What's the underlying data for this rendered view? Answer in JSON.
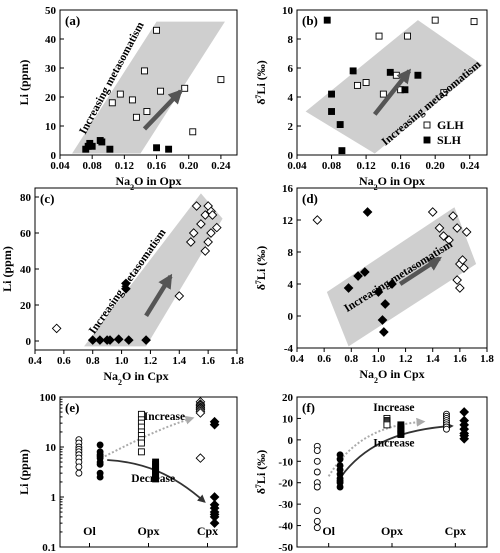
{
  "chart_data": [
    {
      "id": "a",
      "type": "scatter",
      "panel_label": "(a)",
      "xlabel": "Na2O in Opx",
      "ylabel": "Li (ppm)",
      "xlim": [
        0.04,
        0.26
      ],
      "ylim": [
        0,
        50
      ],
      "xticks": [
        "0.04",
        "0.08",
        "0.12",
        "0.16",
        "0.20",
        "0.24"
      ],
      "xtick_values": [
        0.04,
        0.08,
        0.12,
        0.16,
        0.2,
        0.24
      ],
      "yticks": [
        "0",
        "10",
        "20",
        "30",
        "40",
        "50"
      ],
      "ytick_values": [
        0,
        10,
        20,
        30,
        40,
        50
      ],
      "band": [
        [
          0.055,
          0.5
        ],
        [
          0.14,
          0.5
        ],
        [
          0.245,
          46
        ],
        [
          0.16,
          46
        ]
      ],
      "arrow": {
        "from": [
          0.145,
          9
        ],
        "to": [
          0.19,
          22
        ]
      },
      "annotations": [
        {
          "text": "Increasing metasomatism",
          "x": 0.108,
          "y": 26,
          "angle": -62
        }
      ],
      "series": [
        {
          "name": "GLH",
          "marker": "open-square",
          "points": [
            [
              0.105,
              18
            ],
            [
              0.115,
              21
            ],
            [
              0.13,
              19
            ],
            [
              0.135,
              13
            ],
            [
              0.145,
              29
            ],
            [
              0.148,
              15
            ],
            [
              0.16,
              43
            ],
            [
              0.165,
              22
            ],
            [
              0.195,
              23
            ],
            [
              0.205,
              8
            ],
            [
              0.24,
              26
            ]
          ]
        },
        {
          "name": "SLH",
          "marker": "filled-square",
          "points": [
            [
              0.072,
              2
            ],
            [
              0.075,
              3
            ],
            [
              0.077,
              4
            ],
            [
              0.08,
              3
            ],
            [
              0.09,
              5
            ],
            [
              0.092,
              4.5
            ],
            [
              0.102,
              2
            ],
            [
              0.16,
              2.5
            ],
            [
              0.175,
              2
            ]
          ]
        }
      ]
    },
    {
      "id": "b",
      "type": "scatter",
      "panel_label": "(b)",
      "xlabel": "Na2O in Opx",
      "ylabel": "δ7Li (‰)",
      "xlim": [
        0.04,
        0.26
      ],
      "ylim": [
        0,
        10
      ],
      "xticks": [
        "0.04",
        "0.08",
        "0.12",
        "0.16",
        "0.20",
        "0.24"
      ],
      "xtick_values": [
        0.04,
        0.08,
        0.12,
        0.16,
        0.2,
        0.24
      ],
      "yticks": [
        "0",
        "2",
        "4",
        "6",
        "8",
        "10"
      ],
      "ytick_values": [
        0,
        2,
        4,
        6,
        8,
        10
      ],
      "band": [
        [
          0.05,
          3
        ],
        [
          0.18,
          9.3
        ],
        [
          0.255,
          6.2
        ],
        [
          0.13,
          0.1
        ]
      ],
      "arrow": {
        "from": [
          0.13,
          2.8
        ],
        "to": [
          0.17,
          5.8
        ]
      },
      "annotations": [
        {
          "text": "Increasing metasomatism",
          "x": 0.198,
          "y": 3.4,
          "angle": -40
        }
      ],
      "legend": {
        "position": "bottom-right"
      },
      "series": [
        {
          "name": "GLH",
          "marker": "open-square",
          "points": [
            [
              0.11,
              4.8
            ],
            [
              0.12,
              5
            ],
            [
              0.135,
              8.2
            ],
            [
              0.14,
              4.2
            ],
            [
              0.155,
              5.5
            ],
            [
              0.16,
              4.5
            ],
            [
              0.168,
              8.2
            ],
            [
              0.2,
              9.3
            ],
            [
              0.21,
              4.3
            ],
            [
              0.245,
              9.2
            ]
          ]
        },
        {
          "name": "SLH",
          "marker": "filled-square",
          "points": [
            [
              0.075,
              9.3
            ],
            [
              0.08,
              4.2
            ],
            [
              0.08,
              3
            ],
            [
              0.09,
              2.1
            ],
            [
              0.092,
              0.3
            ],
            [
              0.105,
              5.8
            ],
            [
              0.148,
              5.7
            ],
            [
              0.165,
              4.5
            ],
            [
              0.18,
              5.5
            ]
          ]
        }
      ]
    },
    {
      "id": "c",
      "type": "scatter",
      "panel_label": "(c)",
      "xlabel": "Na2O in Cpx",
      "ylabel": "Li (ppm)",
      "xlim": [
        0.4,
        1.8
      ],
      "ylim": [
        -5,
        85
      ],
      "xticks": [
        "0.4",
        "0.6",
        "0.8",
        "1.0",
        "1.2",
        "1.4",
        "1.6",
        "1.8"
      ],
      "xtick_values": [
        0.4,
        0.6,
        0.8,
        1.0,
        1.2,
        1.4,
        1.6,
        1.8
      ],
      "yticks": [
        "0",
        "20",
        "40",
        "60",
        "80"
      ],
      "ytick_values": [
        0,
        20,
        40,
        60,
        80
      ],
      "band": [
        [
          0.74,
          -3
        ],
        [
          1.17,
          -3
        ],
        [
          1.7,
          68
        ],
        [
          1.55,
          82
        ]
      ],
      "arrow": {
        "from": [
          1.17,
          14
        ],
        "to": [
          1.34,
          36
        ]
      },
      "annotations": [
        {
          "text": "Increasing metasomatism",
          "x": 1.06,
          "y": 32,
          "angle": -55
        }
      ],
      "series": [
        {
          "name": "GLH",
          "marker": "open-diamond",
          "points": [
            [
              0.55,
              7
            ],
            [
              1.4,
              25
            ],
            [
              1.48,
              55
            ],
            [
              1.5,
              60
            ],
            [
              1.52,
              75
            ],
            [
              1.55,
              65
            ],
            [
              1.58,
              70
            ],
            [
              1.58,
              50
            ],
            [
              1.6,
              55
            ],
            [
              1.6,
              75
            ],
            [
              1.62,
              72
            ],
            [
              1.62,
              60
            ],
            [
              1.63,
              70
            ],
            [
              1.66,
              63
            ]
          ]
        },
        {
          "name": "SLH",
          "marker": "filled-diamond",
          "points": [
            [
              0.8,
              0.5
            ],
            [
              0.85,
              0.5
            ],
            [
              0.9,
              0.5
            ],
            [
              0.92,
              0.5
            ],
            [
              0.98,
              1
            ],
            [
              1.03,
              32
            ],
            [
              1.03,
              29
            ],
            [
              1.05,
              0.5
            ],
            [
              1.17,
              0.5
            ]
          ]
        }
      ]
    },
    {
      "id": "d",
      "type": "scatter",
      "panel_label": "(d)",
      "xlabel": "Na2O in Cpx",
      "ylabel": "δ7Li (‰)",
      "xlim": [
        0.4,
        1.8
      ],
      "ylim": [
        -4,
        16
      ],
      "xticks": [
        "0.4",
        "0.6",
        "0.8",
        "1.0",
        "1.2",
        "1.4",
        "1.6",
        "1.8"
      ],
      "xtick_values": [
        0.4,
        0.6,
        0.8,
        1.0,
        1.2,
        1.4,
        1.6,
        1.8
      ],
      "yticks": [
        "-4",
        "0",
        "4",
        "8",
        "12",
        "16"
      ],
      "ytick_values": [
        -4,
        0,
        4,
        8,
        12,
        16
      ],
      "band": [
        [
          0.62,
          3
        ],
        [
          1.56,
          13.6
        ],
        [
          1.72,
          6.5
        ],
        [
          0.78,
          -3.8
        ]
      ],
      "arrow": {
        "from": [
          1.16,
          4
        ],
        "to": [
          1.45,
          7.2
        ]
      },
      "annotations": [
        {
          "text": "Increasing metasomatism",
          "x": 1.16,
          "y": 4.6,
          "angle": -32
        }
      ],
      "series": [
        {
          "name": "GLH",
          "marker": "open-diamond",
          "points": [
            [
              0.55,
              12
            ],
            [
              1.4,
              13
            ],
            [
              1.45,
              11
            ],
            [
              1.48,
              10
            ],
            [
              1.52,
              9.5
            ],
            [
              1.55,
              12.5
            ],
            [
              1.58,
              4.5
            ],
            [
              1.58,
              11
            ],
            [
              1.6,
              6.5
            ],
            [
              1.6,
              3.5
            ],
            [
              1.62,
              7
            ],
            [
              1.63,
              6
            ],
            [
              1.65,
              10.5
            ]
          ]
        },
        {
          "name": "SLH",
          "marker": "filled-diamond",
          "points": [
            [
              0.78,
              3.5
            ],
            [
              0.85,
              5
            ],
            [
              0.9,
              5.5
            ],
            [
              0.92,
              13
            ],
            [
              1.0,
              3
            ],
            [
              1.03,
              -0.5
            ],
            [
              1.04,
              -2
            ],
            [
              1.05,
              1.5
            ],
            [
              1.1,
              4
            ]
          ]
        }
      ]
    },
    {
      "id": "e",
      "type": "scatter",
      "panel_label": "(e)",
      "xlabel": "",
      "ylabel": "Li (ppm)",
      "ylog": true,
      "ylim": [
        0.1,
        100
      ],
      "yticks": [
        "0.1",
        "1",
        "10",
        "100"
      ],
      "ytick_values": [
        0.1,
        1,
        10,
        100
      ],
      "categories": [
        "Ol",
        "Opx",
        "Cpx"
      ],
      "annotations": [
        {
          "text": "Increase",
          "category_x": 1.27,
          "y": 35
        },
        {
          "text": "Decrease",
          "category_x": 1.08,
          "y": 2.0
        }
      ],
      "trends": [
        {
          "label": "Increase",
          "style": "dotted-grey",
          "points": [
            [
              0.2,
              6
            ],
            [
              0.7,
              12
            ],
            [
              1.2,
              24
            ],
            [
              1.75,
              38
            ]
          ]
        },
        {
          "label": "Decrease",
          "style": "solid-dark",
          "points": [
            [
              0.3,
              5.5
            ],
            [
              0.9,
              5
            ],
            [
              1.4,
              3
            ],
            [
              1.95,
              0.8
            ]
          ]
        }
      ],
      "series": [
        {
          "name": "GLH",
          "marker": "open-circle",
          "category": 0,
          "offset": -0.18,
          "values": [
            14,
            12,
            10,
            9,
            8,
            7,
            6,
            5,
            4,
            3
          ]
        },
        {
          "name": "SLH",
          "marker": "filled-circle",
          "category": 0,
          "offset": 0.18,
          "values": [
            11,
            8,
            7,
            6.5,
            6,
            5,
            4.5,
            3,
            2.5
          ]
        },
        {
          "name": "GLH",
          "marker": "open-square",
          "category": 1,
          "offset": -0.12,
          "values": [
            45,
            35,
            30,
            25,
            20,
            17,
            14,
            12,
            8
          ]
        },
        {
          "name": "SLH",
          "marker": "filled-square",
          "category": 1,
          "offset": 0.12,
          "values": [
            5,
            4.5,
            4,
            3.5,
            3.2,
            3,
            2.8,
            2.6,
            2.3
          ]
        },
        {
          "name": "GLH",
          "marker": "open-diamond",
          "category": 2,
          "offset": -0.12,
          "values": [
            80,
            72,
            68,
            63,
            60,
            56,
            52,
            48,
            6
          ]
        },
        {
          "name": "SLH",
          "marker": "filled-diamond",
          "category": 2,
          "offset": 0.12,
          "values": [
            32,
            28,
            1,
            0.7,
            0.6,
            0.5,
            0.45,
            0.4,
            0.3
          ]
        }
      ]
    },
    {
      "id": "f",
      "type": "scatter",
      "panel_label": "(f)",
      "xlabel": "",
      "ylabel": "δ7Li (‰)",
      "ylim": [
        -50,
        20
      ],
      "yticks": [
        "-50",
        "-40",
        "-30",
        "-20",
        "-10",
        "0",
        "10",
        "20"
      ],
      "ytick_values": [
        -50,
        -40,
        -30,
        -20,
        -10,
        0,
        10,
        20
      ],
      "categories": [
        "Ol",
        "Opx",
        "Cpx"
      ],
      "annotations": [
        {
          "text": "Increase",
          "category_x": 1.03,
          "y": 13.5
        },
        {
          "text": "Increase",
          "category_x": 1.03,
          "y": -3
        }
      ],
      "trends": [
        {
          "label": "Increase",
          "style": "dotted-grey",
          "points": [
            [
              0.0,
              -17
            ],
            [
              0.4,
              2
            ],
            [
              0.9,
              7
            ],
            [
              1.5,
              8.5
            ]
          ]
        },
        {
          "label": "Increase",
          "style": "solid-dark",
          "points": [
            [
              0.2,
              -17
            ],
            [
              0.6,
              -1
            ],
            [
              1.2,
              5
            ],
            [
              1.95,
              6.5
            ]
          ]
        }
      ],
      "series": [
        {
          "name": "GLH",
          "marker": "open-circle",
          "category": 0,
          "offset": -0.18,
          "values": [
            -3,
            -5,
            -10,
            -15,
            -20,
            -22,
            -33,
            -38,
            -41
          ]
        },
        {
          "name": "SLH",
          "marker": "filled-circle",
          "category": 0,
          "offset": 0.18,
          "values": [
            -7,
            -9,
            -12,
            -14,
            -16,
            -18,
            -19,
            -20,
            -22
          ]
        },
        {
          "name": "GLH",
          "marker": "open-square",
          "category": 1,
          "offset": -0.08,
          "values": [
            10,
            9,
            8.5,
            8,
            7.5,
            7
          ]
        },
        {
          "name": "SLH",
          "marker": "filled-square",
          "category": 1,
          "offset": 0.14,
          "values": [
            7,
            6,
            5,
            4,
            3,
            2.5
          ]
        },
        {
          "name": "GLH",
          "marker": "open-circle",
          "category": 2,
          "offset": -0.14,
          "values": [
            12,
            11,
            10,
            9,
            8,
            7,
            6,
            5
          ]
        },
        {
          "name": "SLH",
          "marker": "filled-diamond",
          "category": 2,
          "offset": 0.14,
          "values": [
            13,
            9,
            7,
            5,
            3,
            2,
            0.5
          ]
        }
      ]
    }
  ]
}
